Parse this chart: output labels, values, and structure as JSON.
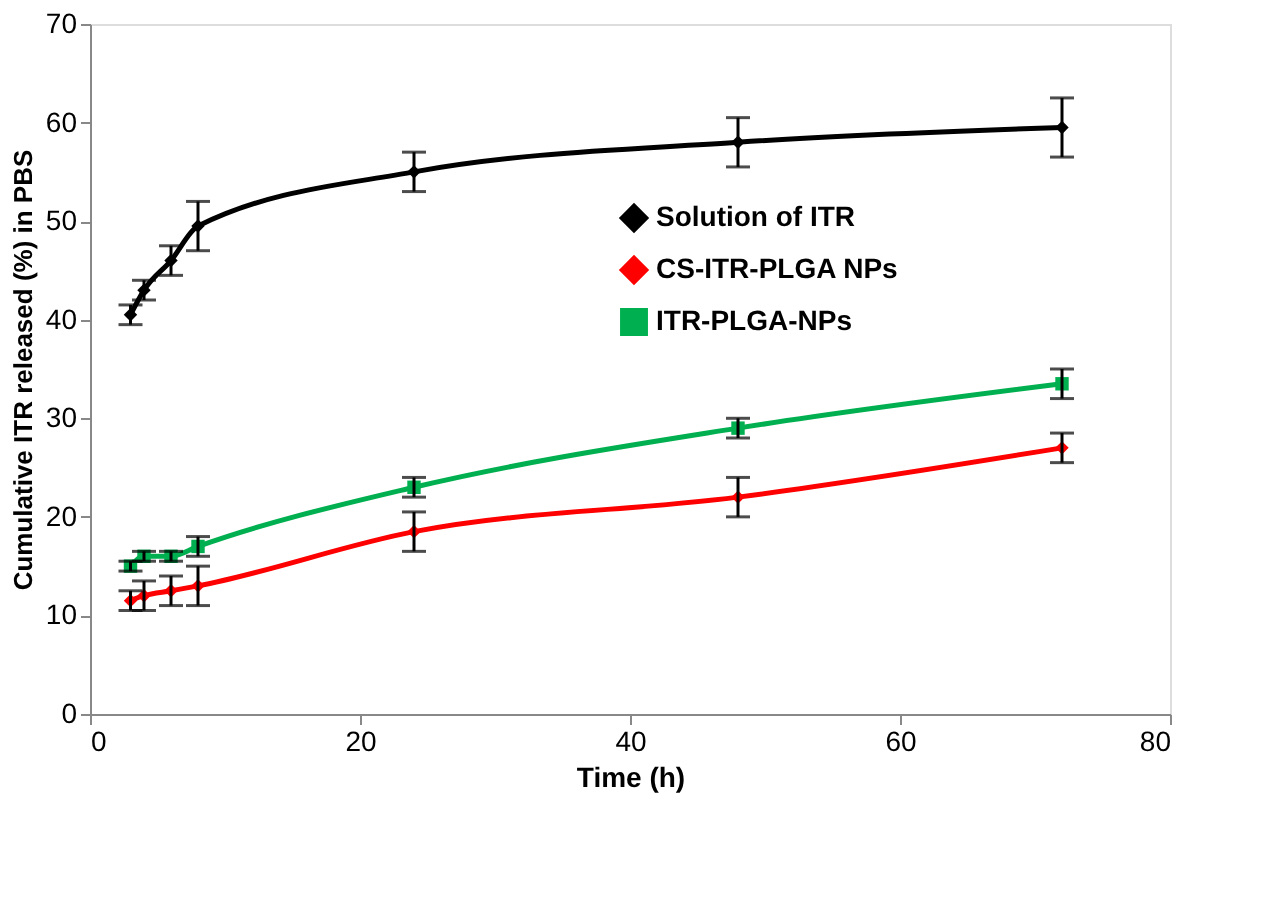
{
  "chart_data": {
    "type": "line",
    "xlabel": "Time (h)",
    "ylabel": "Cumulative ITR released (%) in PBS",
    "x": [
      3,
      4,
      6,
      8,
      24,
      48,
      72
    ],
    "xlim": [
      0,
      80
    ],
    "xticks": [
      0,
      20,
      40,
      60,
      80
    ],
    "ylim": [
      0,
      70
    ],
    "yticks": [
      0,
      10,
      20,
      30,
      40,
      50,
      60,
      70
    ],
    "grid": false,
    "legend": "right",
    "line_style": "solid",
    "series": [
      {
        "name": "Solution of ITR",
        "color": "#000000",
        "marker": "diamond",
        "values": [
          40.5,
          43,
          46,
          49.5,
          55,
          58,
          59.5
        ],
        "errors": [
          1,
          1,
          1.5,
          2.5,
          2,
          2.5,
          3
        ]
      },
      {
        "name": "CS-ITR-PLGA NPs",
        "color": "#ff0000",
        "marker": "diamond",
        "values": [
          11.5,
          12,
          12.5,
          13,
          18.5,
          22,
          27
        ],
        "errors": [
          1,
          1.5,
          1.5,
          2,
          2,
          2,
          1.5
        ]
      },
      {
        "name": "ITR-PLGA-NPs",
        "color": "#00b050",
        "marker": "square",
        "values": [
          15,
          16,
          16,
          17,
          23,
          29,
          33.5
        ],
        "errors": [
          0.5,
          0.5,
          0.5,
          1,
          1,
          1,
          1.5
        ]
      }
    ]
  }
}
